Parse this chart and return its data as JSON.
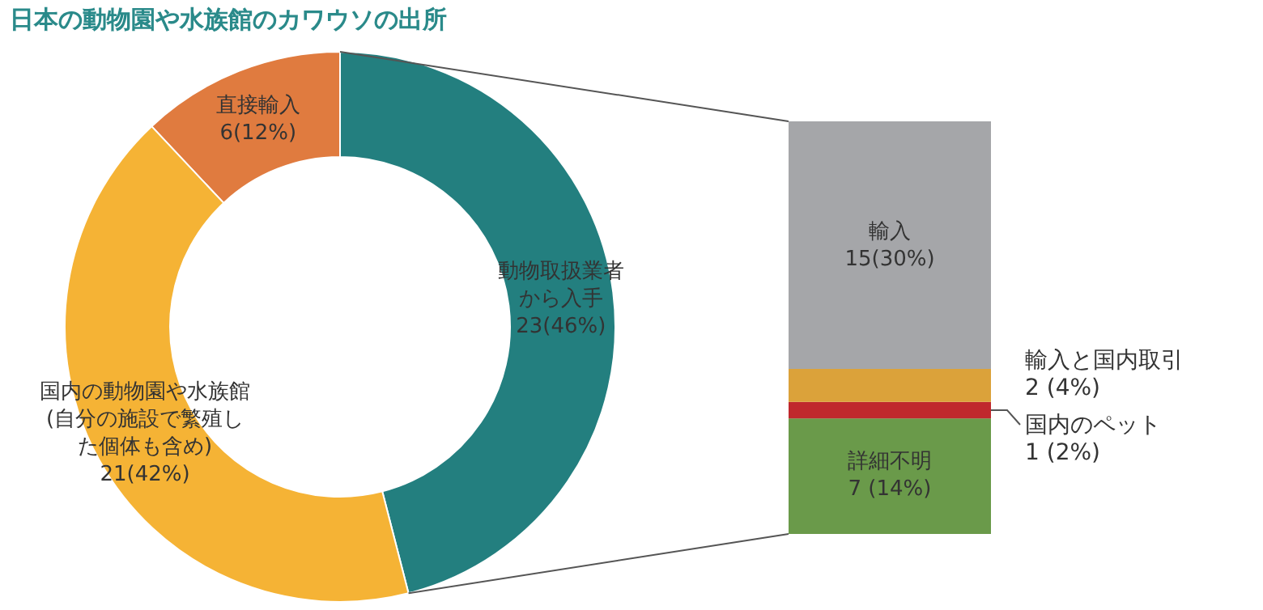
{
  "chart_data": [
    {
      "type": "donut",
      "title": "日本の動物園や水族館のカワウソの出所",
      "categories": [
        "直接輸入",
        "動物取扱業者から入手",
        "国内の動物園や水族館(自分の施設で繁殖した個体も含め)"
      ],
      "values": [
        6,
        23,
        21
      ],
      "colors": [
        "#e07b3f",
        "#237f7f",
        "#f5b335"
      ],
      "value_labels": [
        "6(12%)",
        "23(46%)",
        "21(42%)"
      ]
    },
    {
      "type": "bar",
      "stacked": true,
      "categories": [
        null
      ],
      "series": [
        {
          "name": "詳細不明",
          "color": "#6a9a4a",
          "values": [
            7
          ],
          "value_labels": [
            "7 (14%)"
          ]
        },
        {
          "name": "国内のペット",
          "color": "#c0282d",
          "values": [
            1
          ],
          "value_labels": [
            "1 (2%)"
          ]
        },
        {
          "name": "輸入と国内取引",
          "color": "#dba23a",
          "values": [
            2
          ],
          "value_labels": [
            "2 (4%)"
          ]
        },
        {
          "name": "輸入",
          "color": "#a5a6a9",
          "values": [
            15
          ],
          "value_labels": [
            "15(30%)"
          ]
        }
      ]
    }
  ]
}
